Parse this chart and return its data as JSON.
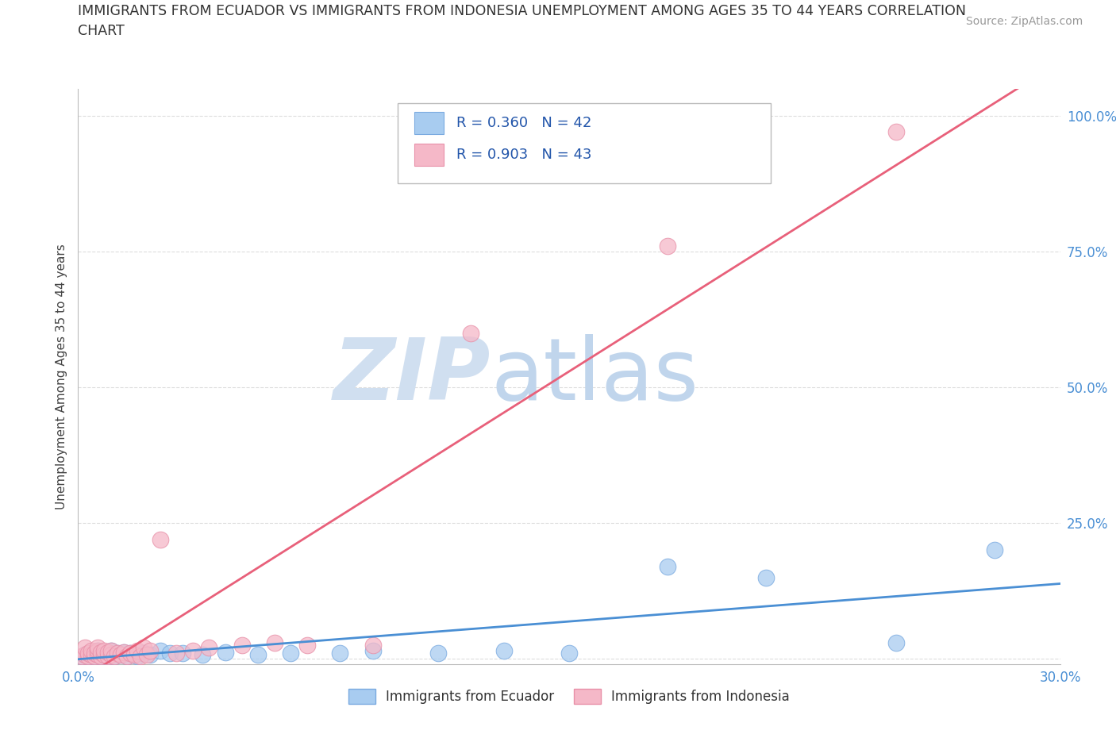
{
  "title_line1": "IMMIGRANTS FROM ECUADOR VS IMMIGRANTS FROM INDONESIA UNEMPLOYMENT AMONG AGES 35 TO 44 YEARS CORRELATION",
  "title_line2": "CHART",
  "source": "Source: ZipAtlas.com",
  "ylabel": "Unemployment Among Ages 35 to 44 years",
  "ecuador_color": "#A8CCF0",
  "ecuador_edge": "#7AAAE0",
  "indonesia_color": "#F5B8C8",
  "indonesia_edge": "#E890A8",
  "ecuador_line_color": "#4A8FD4",
  "indonesia_line_color": "#E8607A",
  "watermark_zip_color": "#D0DFF0",
  "watermark_atlas_color": "#C0D5EC",
  "legend_color": "#2255AA",
  "background_color": "#FFFFFF",
  "grid_color": "#DDDDDD",
  "ecuador_x": [
    0.001,
    0.002,
    0.003,
    0.004,
    0.005,
    0.005,
    0.006,
    0.006,
    0.007,
    0.007,
    0.008,
    0.008,
    0.009,
    0.009,
    0.01,
    0.01,
    0.011,
    0.012,
    0.013,
    0.014,
    0.015,
    0.016,
    0.017,
    0.018,
    0.02,
    0.022,
    0.025,
    0.028,
    0.032,
    0.038,
    0.045,
    0.055,
    0.065,
    0.08,
    0.09,
    0.11,
    0.13,
    0.15,
    0.18,
    0.21,
    0.25,
    0.28
  ],
  "ecuador_y": [
    0.005,
    0.008,
    0.005,
    0.01,
    0.005,
    0.012,
    0.008,
    0.015,
    0.005,
    0.01,
    0.008,
    0.012,
    0.005,
    0.01,
    0.008,
    0.015,
    0.005,
    0.01,
    0.008,
    0.012,
    0.005,
    0.01,
    0.008,
    0.005,
    0.01,
    0.008,
    0.015,
    0.01,
    0.01,
    0.008,
    0.012,
    0.008,
    0.01,
    0.01,
    0.015,
    0.01,
    0.015,
    0.01,
    0.17,
    0.15,
    0.03,
    0.2
  ],
  "indonesia_x": [
    0.001,
    0.002,
    0.002,
    0.003,
    0.003,
    0.004,
    0.004,
    0.005,
    0.005,
    0.006,
    0.006,
    0.006,
    0.007,
    0.007,
    0.008,
    0.008,
    0.009,
    0.009,
    0.01,
    0.01,
    0.011,
    0.012,
    0.013,
    0.014,
    0.015,
    0.016,
    0.017,
    0.018,
    0.019,
    0.02,
    0.021,
    0.022,
    0.025,
    0.03,
    0.035,
    0.04,
    0.05,
    0.06,
    0.07,
    0.09,
    0.12,
    0.18,
    0.25
  ],
  "indonesia_y": [
    0.005,
    0.008,
    0.02,
    0.005,
    0.01,
    0.008,
    0.015,
    0.005,
    0.01,
    0.008,
    0.015,
    0.02,
    0.005,
    0.012,
    0.008,
    0.015,
    0.005,
    0.012,
    0.008,
    0.015,
    0.005,
    0.01,
    0.008,
    0.012,
    0.005,
    0.01,
    0.008,
    0.015,
    0.005,
    0.02,
    0.008,
    0.015,
    0.22,
    0.01,
    0.015,
    0.02,
    0.025,
    0.03,
    0.025,
    0.025,
    0.6,
    0.76,
    0.97
  ],
  "xlim": [
    0.0,
    0.3
  ],
  "ylim": [
    -0.01,
    1.05
  ],
  "yticks": [
    0.0,
    0.25,
    0.5,
    0.75,
    1.0
  ],
  "ytick_labels": [
    "",
    "25.0%",
    "50.0%",
    "75.0%",
    "100.0%"
  ],
  "xtick_labels": [
    "0.0%",
    "30.0%"
  ]
}
